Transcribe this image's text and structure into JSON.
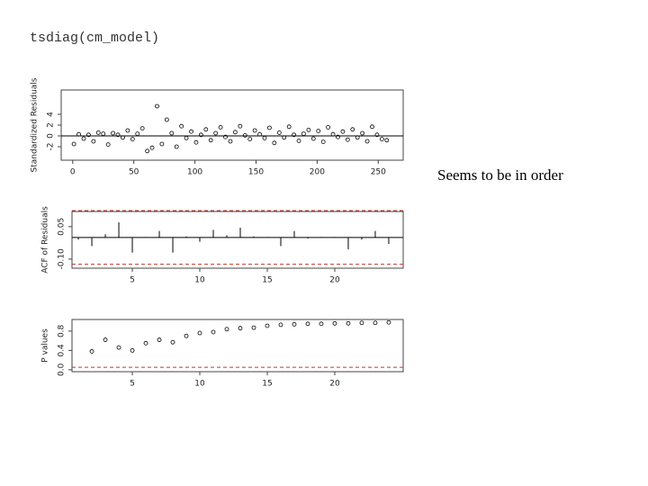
{
  "code": "tsdiag(cm_model)",
  "note": "Seems to be in order",
  "chart_data": [
    {
      "type": "scatter",
      "ylabel": "Standardized Residuals",
      "x": [
        1,
        5,
        9,
        13,
        17,
        21,
        25,
        29,
        33,
        37,
        41,
        45,
        49,
        53,
        57,
        61,
        65,
        69,
        73,
        77,
        81,
        85,
        89,
        93,
        97,
        101,
        105,
        109,
        113,
        117,
        121,
        125,
        129,
        133,
        137,
        141,
        145,
        149,
        153,
        157,
        161,
        165,
        169,
        173,
        177,
        181,
        185,
        189,
        193,
        197,
        201,
        205,
        209,
        213,
        217,
        221,
        225,
        229,
        233,
        237,
        241,
        245,
        249,
        253,
        257
      ],
      "values": [
        -1.5,
        0.3,
        -0.5,
        0.2,
        -1,
        0.6,
        0.4,
        -1.6,
        0.5,
        0.2,
        -0.3,
        1,
        -0.6,
        0.4,
        1.4,
        -2.8,
        -2.2,
        5.5,
        -1.5,
        3,
        0.5,
        -2,
        1.8,
        -0.4,
        0.8,
        -1.2,
        0.2,
        1.2,
        -0.8,
        0.5,
        1.6,
        -0.2,
        -1,
        0.7,
        1.8,
        0.1,
        -0.6,
        1,
        0.3,
        -0.4,
        1.5,
        -1.3,
        0.6,
        -0.3,
        1.7,
        0.2,
        -0.9,
        0.4,
        1.1,
        -0.5,
        0.9,
        -1.1,
        1.6,
        0.3,
        -0.2,
        0.8,
        -0.7,
        1.2,
        -0.3,
        0.5,
        -1,
        1.7,
        0.2,
        -0.6,
        -0.8
      ],
      "color": "#000000",
      "xlim": [
        -9.4,
        270.4
      ],
      "ylim": [
        -4.5,
        8.5
      ],
      "xticks": [
        0,
        50,
        100,
        150,
        200,
        250
      ],
      "yticks": [
        -2,
        0,
        2,
        4
      ],
      "hlines": [
        {
          "value": 0,
          "color": "#000000",
          "dashed": false
        }
      ]
    },
    {
      "type": "spike",
      "ylabel": "ACF of Residuals",
      "x": [
        1,
        2,
        3,
        4,
        5,
        6,
        7,
        8,
        9,
        10,
        11,
        12,
        13,
        14,
        15,
        16,
        17,
        18,
        19,
        20,
        21,
        22,
        23,
        24
      ],
      "values": [
        -0.01,
        -0.04,
        0.015,
        0.07,
        -0.07,
        0.002,
        0.03,
        -0.07,
        0.005,
        -0.02,
        0.035,
        0.01,
        0.045,
        0.005,
        0.002,
        -0.04,
        0.03,
        -0.005,
        0.002,
        0.002,
        -0.055,
        -0.01,
        0.03,
        -0.03
      ],
      "color": "#000000",
      "xlim": [
        0.53,
        25.07
      ],
      "ylim": [
        -0.142,
        0.12
      ],
      "xticks": [
        5,
        10,
        15,
        20
      ],
      "yticks": [
        {
          "value": -0.1,
          "label": "-0.10"
        },
        0.05
      ],
      "hlines": [
        {
          "value": 0,
          "color": "#000000",
          "dashed": false
        },
        {
          "value": 0.124,
          "color": "#c0392b",
          "dashed": true
        },
        {
          "value": -0.124,
          "color": "#c0392b",
          "dashed": true
        }
      ]
    },
    {
      "type": "scatter",
      "ylabel": "P values",
      "x": [
        2,
        3,
        4,
        5,
        6,
        7,
        8,
        9,
        10,
        11,
        12,
        13,
        14,
        15,
        16,
        17,
        18,
        19,
        20,
        21,
        22,
        23,
        24
      ],
      "values": [
        0.38,
        0.62,
        0.46,
        0.4,
        0.55,
        0.62,
        0.57,
        0.7,
        0.76,
        0.78,
        0.84,
        0.86,
        0.87,
        0.91,
        0.93,
        0.94,
        0.95,
        0.95,
        0.96,
        0.96,
        0.97,
        0.97,
        0.98
      ],
      "color": "#000000",
      "xlim": [
        0.53,
        25.07
      ],
      "ylim": [
        -0.04,
        1.04
      ],
      "xticks": [
        5,
        10,
        15,
        20
      ],
      "yticks": [
        {
          "value": 0,
          "label": "0.0"
        },
        0.4,
        0.8
      ],
      "hlines": [
        {
          "value": 0.05,
          "color": "#c0392b",
          "dashed": true
        }
      ]
    }
  ]
}
